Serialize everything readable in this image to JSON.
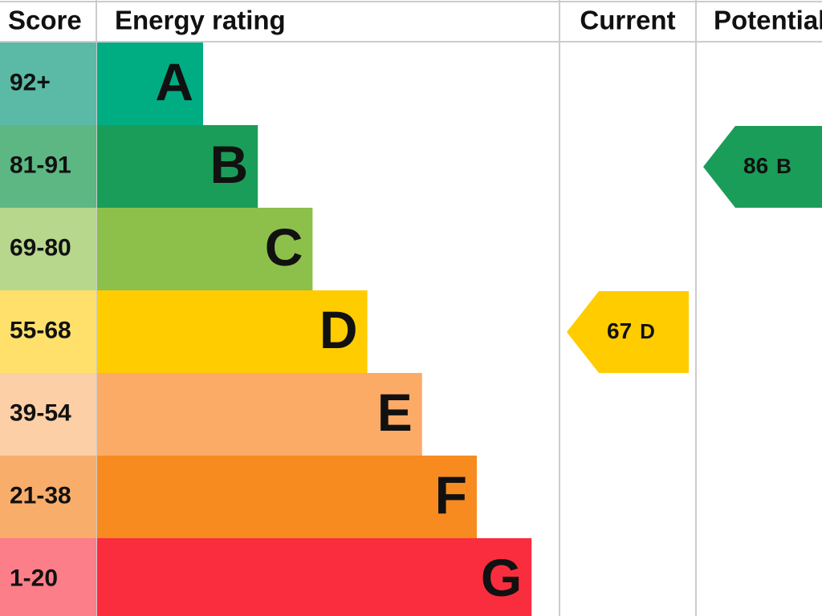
{
  "header": {
    "score": "Score",
    "rating": "Energy rating",
    "current": "Current",
    "potential": "Potential"
  },
  "rows": [
    {
      "score": "92+",
      "letter": "A",
      "color": "#00ad83",
      "light": "#5bbaa6"
    },
    {
      "score": "81-91",
      "letter": "B",
      "color": "#1a9d58",
      "light": "#5db783"
    },
    {
      "score": "69-80",
      "letter": "C",
      "color": "#8cc04a",
      "light": "#b6d78c"
    },
    {
      "score": "55-68",
      "letter": "D",
      "color": "#ffcc00",
      "light": "#ffe06b"
    },
    {
      "score": "39-54",
      "letter": "E",
      "color": "#fcab67",
      "light": "#fdcfa6"
    },
    {
      "score": "21-38",
      "letter": "F",
      "color": "#f78b20",
      "light": "#f9ad6b"
    },
    {
      "score": "1-20",
      "letter": "G",
      "color": "#f92d3e",
      "light": "#fb7e89"
    }
  ],
  "current": {
    "score": 67,
    "rating": "D"
  },
  "potential": {
    "score": 86,
    "rating": "B"
  }
}
